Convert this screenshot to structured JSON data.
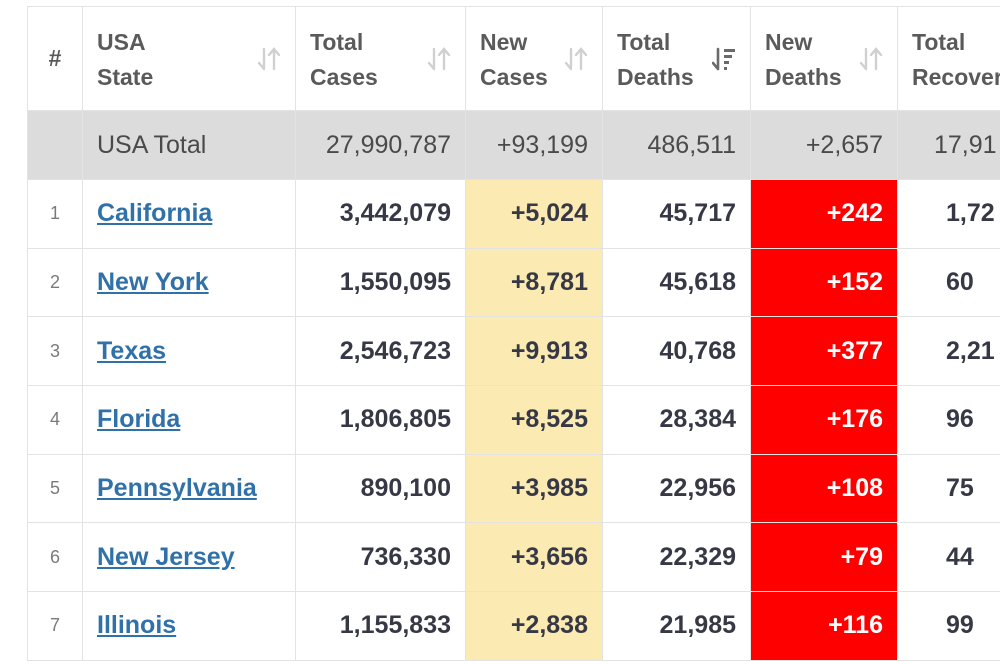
{
  "columns": {
    "num": "#",
    "state_line1": "USA",
    "state_line2": "State",
    "total_cases_line1": "Total",
    "total_cases_line2": "Cases",
    "new_cases_line1": "New",
    "new_cases_line2": "Cases",
    "total_deaths_line1": "Total",
    "total_deaths_line2": "Deaths",
    "new_deaths_line1": "New",
    "new_deaths_line2": "Deaths",
    "total_recovered_line1": "Total",
    "total_recovered_line2": "Recover"
  },
  "total": {
    "name": "USA Total",
    "total_cases": "27,990,787",
    "new_cases": "+93,199",
    "total_deaths": "486,511",
    "new_deaths": "+2,657",
    "total_recovered": "17,91"
  },
  "rows": [
    {
      "idx": "1",
      "name": "California",
      "total_cases": "3,442,079",
      "new_cases": "+5,024",
      "total_deaths": "45,717",
      "new_deaths": "+242",
      "total_recovered": "1,72"
    },
    {
      "idx": "2",
      "name": "New York",
      "total_cases": "1,550,095",
      "new_cases": "+8,781",
      "total_deaths": "45,618",
      "new_deaths": "+152",
      "total_recovered": "60"
    },
    {
      "idx": "3",
      "name": "Texas",
      "total_cases": "2,546,723",
      "new_cases": "+9,913",
      "total_deaths": "40,768",
      "new_deaths": "+377",
      "total_recovered": "2,21"
    },
    {
      "idx": "4",
      "name": "Florida",
      "total_cases": "1,806,805",
      "new_cases": "+8,525",
      "total_deaths": "28,384",
      "new_deaths": "+176",
      "total_recovered": "96"
    },
    {
      "idx": "5",
      "name": "Pennsylvania",
      "total_cases": "890,100",
      "new_cases": "+3,985",
      "total_deaths": "22,956",
      "new_deaths": "+108",
      "total_recovered": "75"
    },
    {
      "idx": "6",
      "name": "New Jersey",
      "total_cases": "736,330",
      "new_cases": "+3,656",
      "total_deaths": "22,329",
      "new_deaths": "+79",
      "total_recovered": "44"
    },
    {
      "idx": "7",
      "name": "Illinois",
      "total_cases": "1,155,833",
      "new_cases": "+2,838",
      "total_deaths": "21,985",
      "new_deaths": "+116",
      "total_recovered": "99"
    }
  ],
  "colors": {
    "new_cases_bg": "#fbeab2",
    "new_deaths_bg": "#fe0000",
    "total_row_bg": "#dcdcdc",
    "link": "#2f71a8"
  },
  "icons": {
    "sort": "sort-both-icon",
    "sorted_desc": "sort-desc-icon"
  }
}
